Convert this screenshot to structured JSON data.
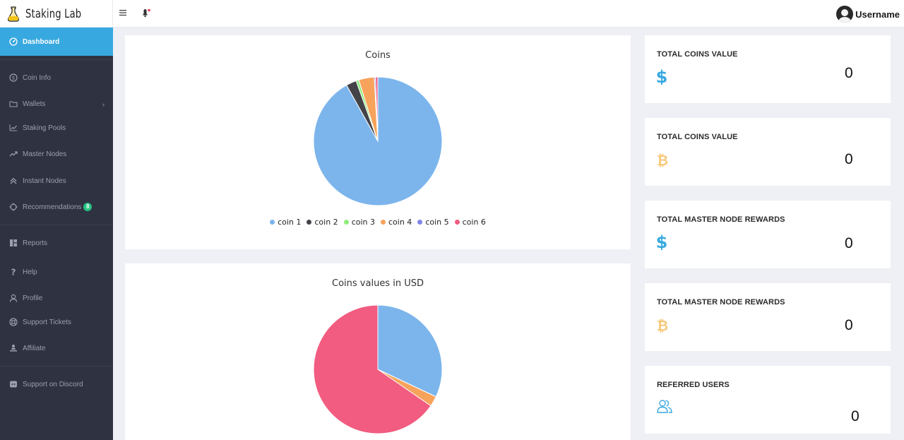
{
  "header": {
    "brand": "Staking Lab",
    "username": "Username",
    "icons": [
      "flask-icon",
      "menu-icon",
      "bell-icon",
      "avatar-icon"
    ]
  },
  "sidebar": {
    "items": [
      {
        "label": "Dashboard",
        "icon": "dashboard-icon",
        "active": true
      },
      {
        "label": "Coin Info",
        "icon": "coin-icon"
      },
      {
        "label": "Wallets",
        "icon": "folder-icon"
      },
      {
        "label": "Staking Pools",
        "icon": "trend-icon"
      },
      {
        "label": "Master Nodes",
        "icon": "trend-up-icon"
      },
      {
        "label": "Instant Nodes",
        "icon": "chevrons-up-icon"
      },
      {
        "label": "Recommendations",
        "icon": "crosshair-icon",
        "badge": "8"
      },
      {
        "label": "Reports",
        "icon": "grid-icon"
      },
      {
        "label": "Help",
        "icon": "question-icon"
      },
      {
        "label": "Profile",
        "icon": "user-icon"
      },
      {
        "label": "Support Tickets",
        "icon": "lifebuoy-icon"
      },
      {
        "label": "Affiliate",
        "icon": "affiliate-icon"
      },
      {
        "label": "Support on Discord",
        "icon": "discord-icon"
      }
    ]
  },
  "charts": {
    "coins": {
      "title": "Coins",
      "legend": [
        "coin 1",
        "coin 2",
        "coin 3",
        "coin 4",
        "coin 5",
        "coin 6"
      ]
    },
    "usd": {
      "title": "Coins values in USD"
    }
  },
  "chart_data": [
    {
      "type": "pie",
      "title": "Coins",
      "categories": [
        "coin 1",
        "coin 2",
        "coin 3",
        "coin 4",
        "coin 5",
        "coin 6"
      ],
      "values": [
        91.9,
        2.6,
        0.7,
        3.9,
        0.3,
        0.6
      ],
      "colors": [
        "#7cb5ec",
        "#434348",
        "#90ed7d",
        "#f7a35c",
        "#8085e9",
        "#f15c80"
      ],
      "legend": "bottom"
    },
    {
      "type": "pie",
      "title": "Coins values in USD",
      "categories": [
        "coin 1",
        "coin 2",
        "coin 3",
        "coin 4",
        "coin 5",
        "coin 6"
      ],
      "values": [
        32.0,
        0,
        0,
        2.6,
        0,
        65.4
      ],
      "colors": [
        "#7cb5ec",
        "#434348",
        "#90ed7d",
        "#f7a35c",
        "#8085e9",
        "#f15c80"
      ]
    }
  ],
  "stats": [
    {
      "title": "TOTAL COINS VALUE",
      "value": "0",
      "icon": "dollar-icon",
      "color": "#38a9e0"
    },
    {
      "title": "TOTAL COINS VALUE",
      "value": "0",
      "icon": "bitcoin-icon",
      "color": "#f7c97a"
    },
    {
      "title": "TOTAL MASTER NODE REWARDS",
      "value": "0",
      "icon": "dollar-icon",
      "color": "#38a9e0"
    },
    {
      "title": "TOTAL MASTER NODE REWARDS",
      "value": "0",
      "icon": "bitcoin-icon",
      "color": "#f7c97a"
    },
    {
      "title": "REFERRED USERS",
      "value": "0",
      "icon": "users-icon",
      "color": "#38a9e0"
    }
  ]
}
